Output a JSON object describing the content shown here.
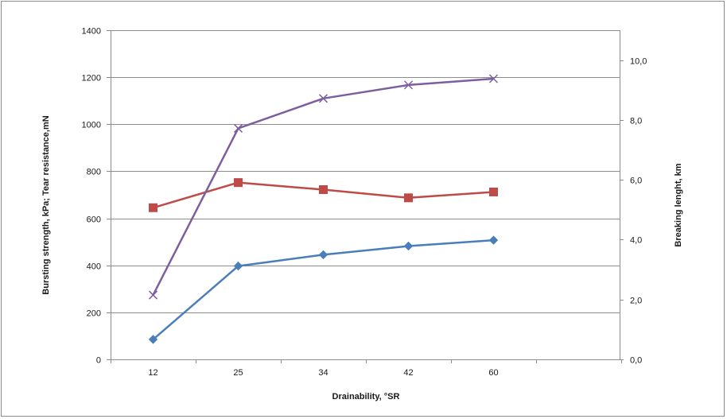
{
  "chart_data": {
    "type": "line",
    "title": "",
    "xlabel": "Drainability, °SR",
    "ylabel": "Bursting strength, kPa; Tear resistance,mN",
    "y2label": "Breaking lenght, km",
    "categories": [
      "12",
      "25",
      "34",
      "42",
      "60"
    ],
    "ylim": [
      0,
      1400
    ],
    "y2lim": [
      0,
      11
    ],
    "y_ticks": [
      "0",
      "200",
      "400",
      "600",
      "800",
      "1000",
      "1200",
      "1400"
    ],
    "y2_ticks": [
      "0,0",
      "2,0",
      "4,0",
      "6,0",
      "8,0",
      "10,0"
    ],
    "grid": true,
    "legend": "none",
    "series": [
      {
        "values": [
          85,
          397,
          445,
          482,
          507
        ],
        "axis": "left",
        "color": "#4a7ebb",
        "marker": "diamond"
      },
      {
        "values": [
          645,
          752,
          722,
          687,
          712
        ],
        "axis": "left",
        "color": "#be4b48",
        "marker": "square"
      },
      {
        "values": [
          2.15,
          7.72,
          8.72,
          9.17,
          9.38
        ],
        "axis": "right",
        "color": "#7d5fa0",
        "marker": "x"
      }
    ]
  }
}
